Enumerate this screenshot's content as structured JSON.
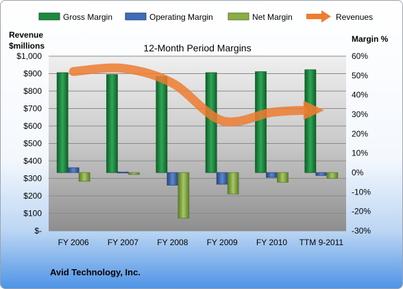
{
  "chart_data": {
    "type": "bar",
    "title": "12-Month Period Margins",
    "categories": [
      "FY 2006",
      "FY 2007",
      "FY 2008",
      "FY 2009",
      "FY 2010",
      "TTM 9-2011"
    ],
    "left_axis": {
      "title_line1": "Revenue",
      "title_line2": "$millions",
      "range": [
        0,
        1000
      ],
      "ticks": [
        "$-",
        "$100",
        "$200",
        "$300",
        "$400",
        "$500",
        "$600",
        "$700",
        "$800",
        "$900",
        "$1,000"
      ]
    },
    "right_axis": {
      "title": "Margin %",
      "range": [
        -30,
        60
      ],
      "ticks": [
        "-30%",
        "-20%",
        "-10%",
        "0%",
        "10%",
        "20%",
        "30%",
        "40%",
        "50%",
        "60%"
      ]
    },
    "series": [
      {
        "name": "Gross Margin",
        "kind": "bar",
        "axis": "right",
        "color": "#1f8a3f",
        "values": [
          51.5,
          50.5,
          49.5,
          51.5,
          52.0,
          53.0
        ]
      },
      {
        "name": "Operating Margin",
        "kind": "bar",
        "axis": "right",
        "color": "#3e6cb8",
        "values": [
          2.5,
          0.3,
          -6.5,
          -6.0,
          -2.5,
          -1.5
        ]
      },
      {
        "name": "Net Margin",
        "kind": "bar",
        "axis": "right",
        "color": "#8cad46",
        "values": [
          -4.5,
          -1.0,
          -23.5,
          -11.0,
          -5.0,
          -3.0
        ]
      },
      {
        "name": "Revenues",
        "kind": "line",
        "axis": "left",
        "color": "#ed7d31",
        "values": [
          912,
          930,
          845,
          630,
          678,
          690
        ]
      }
    ],
    "grid": true,
    "legend_position": "top"
  },
  "footer": {
    "company": "Avid Technology, Inc."
  }
}
